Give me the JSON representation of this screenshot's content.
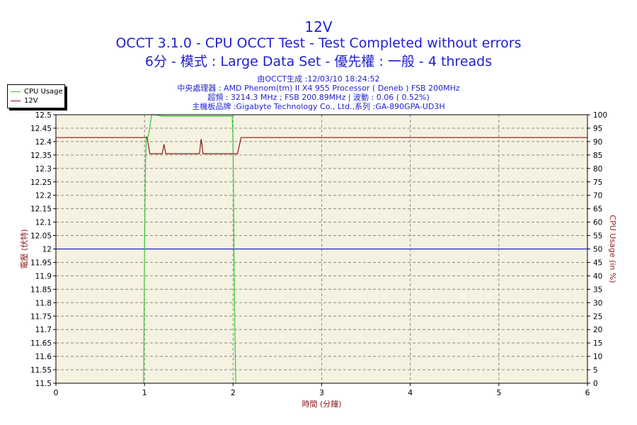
{
  "chart_data": {
    "type": "line",
    "title": "12V",
    "subtitle": "OCCT 3.1.0 - CPU OCCT Test - Test Completed without errors",
    "subtitle2": "6分 - 模式 : Large Data Set - 優先權 : 一般 - 4 threads",
    "info_lines": [
      "由OCCT生成 :12/03/10 18:24:52",
      "中央處理器 : AMD Phenom(tm) II X4 955 Processor ( Deneb ) FSB 200MHz",
      "超頻 : 3214.3 MHz ; FSB 200.89MHz | 波動 : 0.06 ( 0.52%)",
      "主機板品牌 :Gigabyte Technology Co., Ltd.,系列 :GA-890GPA-UD3H"
    ],
    "xlabel": "時間 (分鐘)",
    "ylabel": "電壓 (伏特)",
    "y2label": "CPU Usage (in %)",
    "xlim": [
      0,
      6
    ],
    "ylim": [
      11.5,
      12.5
    ],
    "y2lim": [
      0,
      100
    ],
    "x_ticks": [
      "0",
      "1",
      "2",
      "3",
      "4",
      "5",
      "6"
    ],
    "y_ticks": [
      "12.5",
      "12.45",
      "12.4",
      "12.35",
      "12.3",
      "12.25",
      "12.2",
      "12.15",
      "12.1",
      "12.05",
      "12",
      "11.95",
      "11.9",
      "11.85",
      "11.8",
      "11.75",
      "11.7",
      "11.65",
      "11.6",
      "11.55",
      "11.5"
    ],
    "y2_ticks": [
      "100",
      "95",
      "90",
      "85",
      "80",
      "75",
      "70",
      "65",
      "60",
      "55",
      "50",
      "45",
      "40",
      "35",
      "30",
      "25",
      "20",
      "15",
      "10",
      "5",
      "0"
    ],
    "grid": true,
    "reference_line": {
      "y": 12.0,
      "color": "#0000c0"
    },
    "legend_position": "top-left, outside plot",
    "series": [
      {
        "name": "CPU Usage",
        "axis": "right",
        "color": "#33cc33",
        "x": [
          0.99,
          1.0,
          1.01,
          1.02,
          1.03,
          1.05,
          1.08,
          1.12,
          1.2,
          1.4,
          1.6,
          1.8,
          1.95,
          1.99,
          2.0,
          2.01,
          2.02,
          2.03
        ],
        "y": [
          0,
          50,
          80,
          92,
          91,
          93,
          100,
          100,
          99.5,
          99.5,
          99.5,
          99.5,
          99.5,
          99.5,
          90,
          50,
          20,
          0
        ]
      },
      {
        "name": "12V",
        "axis": "left",
        "color": "#8b1a1a",
        "x": [
          0.0,
          1.03,
          1.06,
          1.2,
          1.22,
          1.24,
          1.62,
          1.64,
          1.66,
          2.0,
          2.05,
          2.09,
          6.0
        ],
        "y": [
          12.415,
          12.415,
          12.355,
          12.355,
          12.39,
          12.355,
          12.355,
          12.41,
          12.355,
          12.355,
          12.355,
          12.415,
          12.415
        ]
      }
    ]
  },
  "colors": {
    "title": "#1f1fd0",
    "axis_label": "#8b1a1a",
    "plot_bg": "#f5f2e1",
    "grid": "#8a8a8a"
  }
}
